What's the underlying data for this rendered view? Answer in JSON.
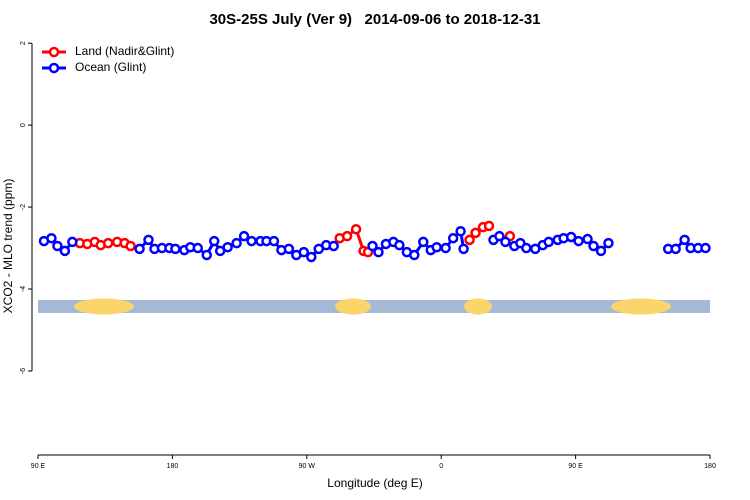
{
  "chart_data": {
    "type": "line",
    "title": "30S-25S July (Ver 9)   2014-09-06 to 2018-12-31",
    "xlabel": "Longitude (deg E)",
    "ylabel": "XCO2 - MLO trend (ppm)",
    "xlim": [
      90,
      540
    ],
    "xticks": [
      {
        "value": 90,
        "label": "90 E"
      },
      {
        "value": 180,
        "label": "180"
      },
      {
        "value": 270,
        "label": "90 W"
      },
      {
        "value": 360,
        "label": "0"
      },
      {
        "value": 450,
        "label": "90 E"
      },
      {
        "value": 540,
        "label": "180"
      }
    ],
    "ylim": [
      -8.1,
      2.2
    ],
    "yticks": [
      2,
      0,
      -2,
      -4,
      -6
    ],
    "legend": "top-left",
    "series": [
      {
        "name": "Land (Nadir&Glint)",
        "color": "#ff0000",
        "x": [
          118,
          123,
          128,
          132,
          137,
          143,
          148,
          152,
          null,
          292,
          297,
          303,
          308,
          311,
          null,
          379,
          383,
          388,
          392,
          null,
          406
        ],
        "values": [
          -2.88,
          -2.9,
          -2.85,
          -2.93,
          -2.88,
          -2.85,
          -2.88,
          -2.95,
          null,
          -2.76,
          -2.71,
          -2.54,
          -3.07,
          -3.1,
          null,
          -2.8,
          -2.63,
          -2.49,
          -2.46,
          null,
          -2.71
        ]
      },
      {
        "name": "Ocean (Glint)",
        "color": "#0000ff",
        "x": [
          94,
          99,
          103,
          108,
          113,
          null,
          158,
          164,
          168,
          173,
          178,
          182,
          188,
          192,
          197,
          203,
          208,
          212,
          217,
          223,
          228,
          233,
          239,
          243,
          248,
          253,
          258,
          263,
          268,
          273,
          278,
          283,
          288,
          null,
          314,
          318,
          323,
          328,
          332,
          337,
          342,
          348,
          353,
          357,
          363,
          368,
          373,
          375,
          null,
          395,
          399,
          403,
          null,
          409,
          413,
          417,
          423,
          428,
          432,
          438,
          442,
          447,
          452,
          458,
          462,
          467,
          472,
          null,
          512,
          517,
          523,
          527,
          532,
          537
        ],
        "values": [
          -2.83,
          -2.76,
          -2.95,
          -3.07,
          -2.85,
          null,
          -3.02,
          -2.8,
          -3.02,
          -3.0,
          -3.0,
          -3.02,
          -3.05,
          -2.98,
          -3.0,
          -3.17,
          -2.83,
          -3.07,
          -2.98,
          -2.88,
          -2.71,
          -2.83,
          -2.83,
          -2.83,
          -2.83,
          -3.05,
          -3.02,
          -3.17,
          -3.1,
          -3.22,
          -3.02,
          -2.93,
          -2.95,
          null,
          -2.95,
          -3.1,
          -2.9,
          -2.85,
          -2.93,
          -3.1,
          -3.17,
          -2.85,
          -3.05,
          -2.98,
          -3.0,
          -2.76,
          -2.59,
          -3.02,
          null,
          -2.8,
          -2.71,
          -2.85,
          null,
          -2.95,
          -2.88,
          -3.0,
          -3.02,
          -2.93,
          -2.85,
          -2.8,
          -2.76,
          -2.73,
          -2.83,
          -2.78,
          -2.95,
          -3.07,
          -2.88,
          null,
          -3.02,
          -3.02,
          -2.8,
          -3.0,
          -3.0,
          -3.0
        ]
      }
    ]
  }
}
